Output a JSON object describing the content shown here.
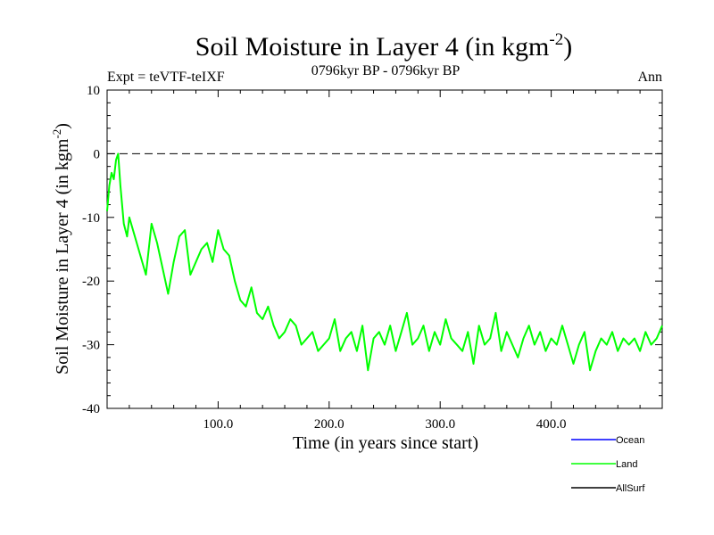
{
  "chart_data": {
    "type": "line",
    "title": "Soil Moisture in Layer 4 (in kgm",
    "title_superscript": "-2",
    "title_suffix": ")",
    "subtitle": "0796kyr BP - 0796kyr BP",
    "left_note": "Expt = teVTF-teIXF",
    "right_note": "Ann",
    "xlabel": "Time (in years since start)",
    "ylabel": "Soil Moisture in Layer 4 (in kgm",
    "ylabel_superscript": "-2",
    "ylabel_suffix": ")",
    "xlim": [
      0,
      500
    ],
    "ylim": [
      -40,
      10
    ],
    "x_ticks": [
      100,
      200,
      300,
      400
    ],
    "x_tick_labels": [
      "100.0",
      "200.0",
      "300.0",
      "400.0"
    ],
    "y_ticks": [
      10,
      0,
      -10,
      -20,
      -30,
      -40
    ],
    "y_tick_labels": [
      "10",
      "0",
      "-10",
      "-20",
      "-30",
      "-40"
    ],
    "zero_line": true,
    "legend_position": "bottom-right",
    "legend": [
      {
        "name": "Ocean",
        "color": "#0000ff"
      },
      {
        "name": "Land",
        "color": "#00ff00"
      },
      {
        "name": "AllSurf",
        "color": "#000000"
      }
    ],
    "series": [
      {
        "name": "Land",
        "color": "#00ff00",
        "x": [
          0,
          2,
          4,
          6,
          8,
          10,
          12,
          15,
          18,
          20,
          25,
          30,
          35,
          40,
          45,
          50,
          55,
          60,
          65,
          70,
          75,
          80,
          85,
          90,
          95,
          100,
          105,
          110,
          115,
          120,
          125,
          130,
          135,
          140,
          145,
          150,
          155,
          160,
          165,
          170,
          175,
          180,
          185,
          190,
          195,
          200,
          205,
          210,
          215,
          220,
          225,
          230,
          235,
          240,
          245,
          250,
          255,
          260,
          265,
          270,
          275,
          280,
          285,
          290,
          295,
          300,
          305,
          310,
          315,
          320,
          325,
          330,
          335,
          340,
          345,
          350,
          355,
          360,
          365,
          370,
          375,
          380,
          385,
          390,
          395,
          400,
          405,
          410,
          415,
          420,
          425,
          430,
          435,
          440,
          445,
          450,
          455,
          460,
          465,
          470,
          475,
          480,
          485,
          490,
          495,
          500
        ],
        "values": [
          -9,
          -5,
          -3,
          -4,
          -1,
          0,
          -5,
          -11,
          -13,
          -10,
          -13,
          -16,
          -19,
          -11,
          -14,
          -18,
          -22,
          -17,
          -13,
          -12,
          -19,
          -17,
          -15,
          -14,
          -17,
          -12,
          -15,
          -16,
          -20,
          -23,
          -24,
          -21,
          -25,
          -26,
          -24,
          -27,
          -29,
          -28,
          -26,
          -27,
          -30,
          -29,
          -28,
          -31,
          -30,
          -29,
          -26,
          -31,
          -29,
          -28,
          -31,
          -27,
          -34,
          -29,
          -28,
          -30,
          -27,
          -31,
          -28,
          -25,
          -30,
          -29,
          -27,
          -31,
          -28,
          -30,
          -26,
          -29,
          -30,
          -31,
          -28,
          -33,
          -27,
          -30,
          -29,
          -25,
          -31,
          -28,
          -30,
          -32,
          -29,
          -27,
          -30,
          -28,
          -31,
          -29,
          -30,
          -27,
          -30,
          -33,
          -30,
          -28,
          -34,
          -31,
          -29,
          -30,
          -28,
          -31,
          -29,
          -30,
          -29,
          -31,
          -28,
          -30,
          -29,
          -27
        ]
      },
      {
        "name": "Ocean",
        "color": "#0000ff",
        "x": [],
        "values": []
      },
      {
        "name": "AllSurf",
        "color": "#000000",
        "x": [],
        "values": []
      }
    ]
  }
}
